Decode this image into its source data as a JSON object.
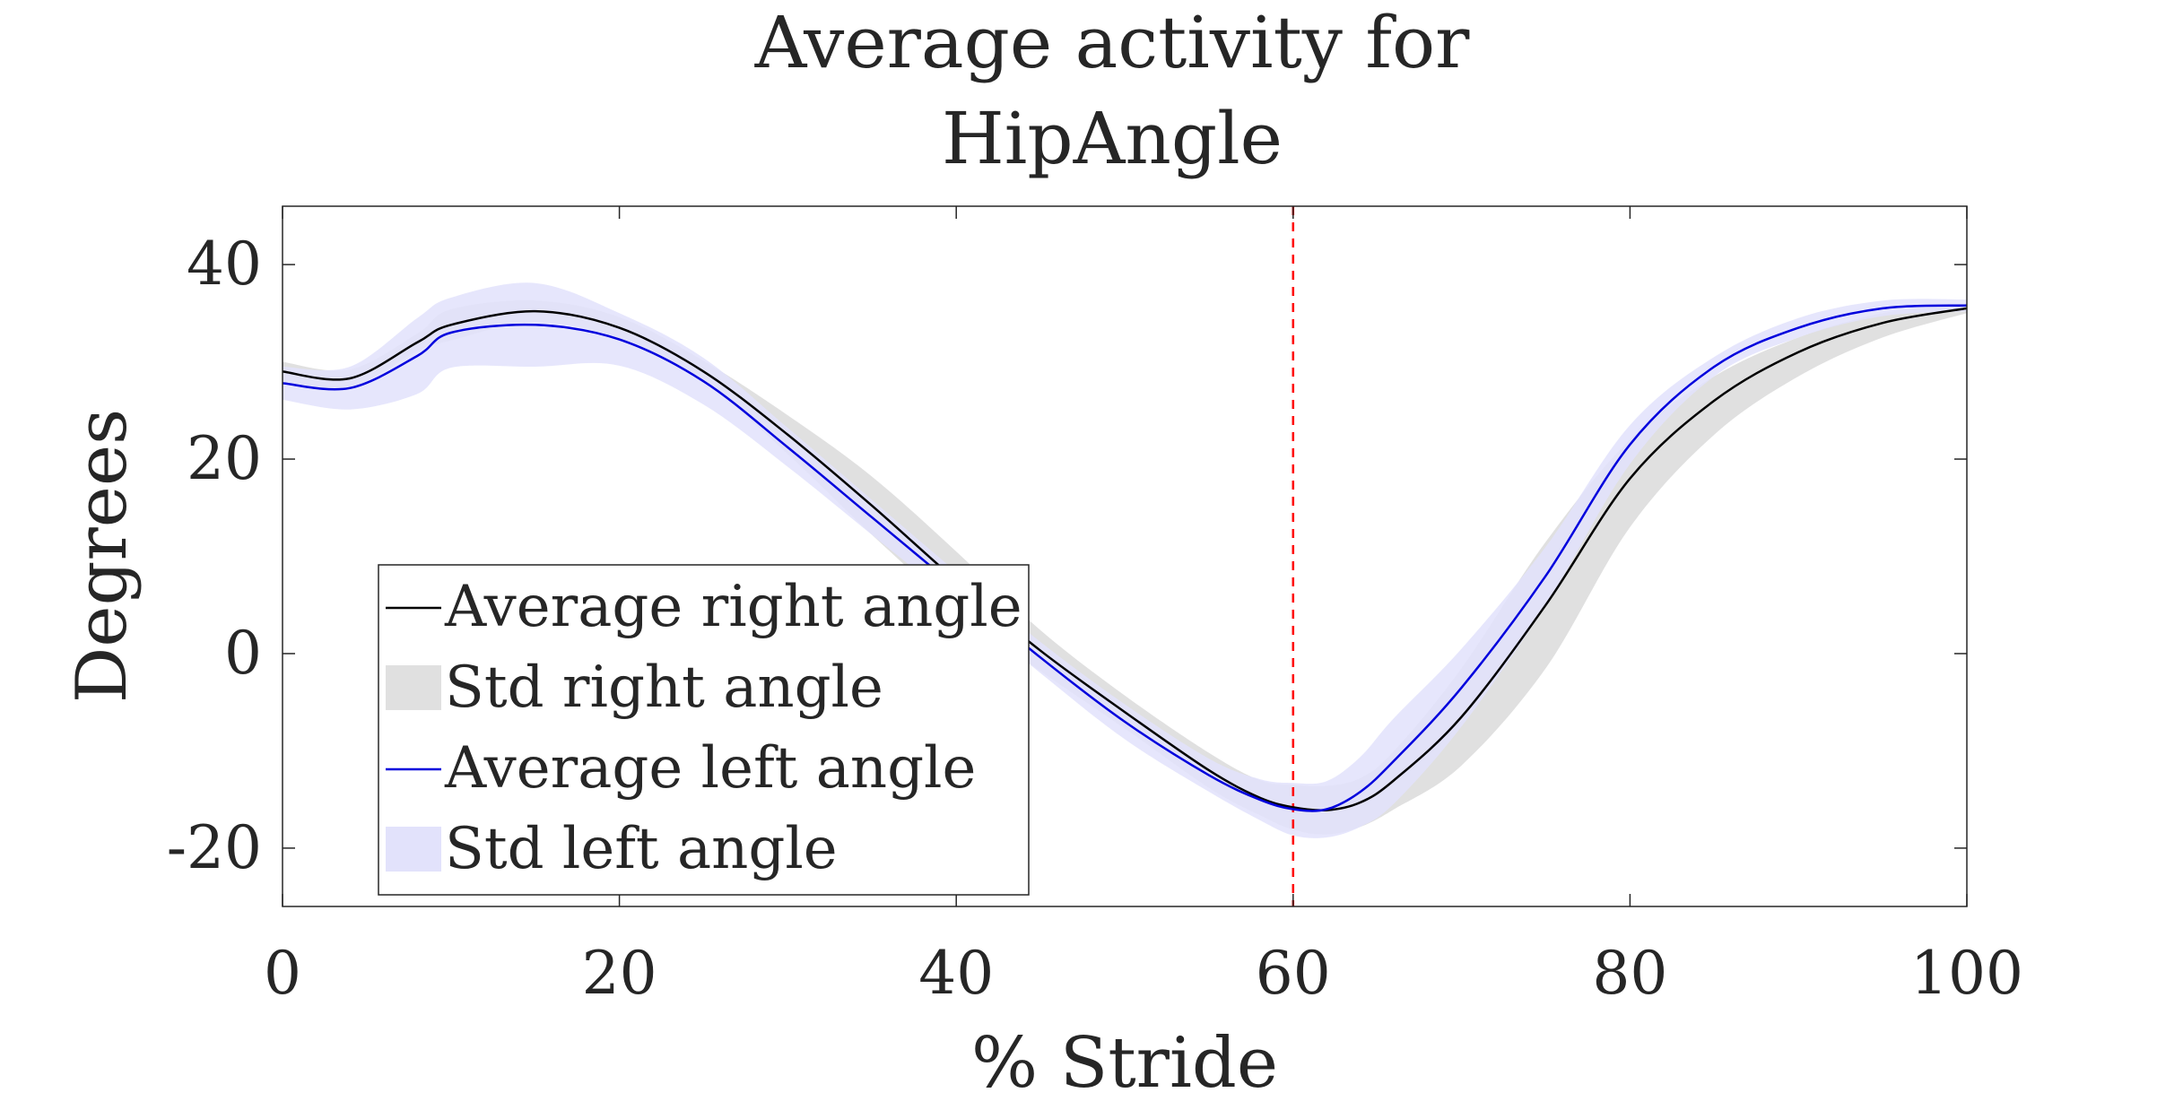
{
  "chart_data": {
    "type": "line",
    "title_lines": [
      "Average activity for",
      "HipAngle"
    ],
    "xlabel": "% Stride",
    "ylabel": "Degrees",
    "xlim": [
      0,
      100
    ],
    "ylim": [
      -26,
      46
    ],
    "xticks": [
      0,
      20,
      40,
      60,
      80,
      100
    ],
    "xtick_labels": [
      "0",
      "20",
      "40",
      "60",
      "80",
      "100"
    ],
    "yticks": [
      40,
      20,
      0,
      -20
    ],
    "ytick_labels": [
      "40",
      "20",
      "0",
      "-20"
    ],
    "grid": false,
    "vertical_marker": {
      "x": 60,
      "color": "#ff0000",
      "style": "dashed"
    },
    "legend": {
      "placement": "lower-left",
      "entries": [
        {
          "label": "Average right angle",
          "kind": "line",
          "color": "#000000"
        },
        {
          "label": "Std right angle",
          "kind": "band",
          "color": "#e0e0e0"
        },
        {
          "label": "Average left angle",
          "kind": "line",
          "color": "#0000dd"
        },
        {
          "label": "Std left angle",
          "kind": "band",
          "color": "#e2e2fb"
        }
      ]
    },
    "x": [
      0,
      4,
      8,
      10,
      15,
      20,
      25,
      30,
      35,
      40,
      45,
      50,
      55,
      58,
      60,
      62,
      64,
      66,
      70,
      75,
      80,
      85,
      90,
      95,
      100
    ],
    "series": [
      {
        "name": "Average right angle",
        "color": "#000000",
        "values": [
          29,
          28.3,
          32,
          33.8,
          35.2,
          33.5,
          29,
          22.5,
          15.2,
          7.5,
          0.3,
          -6,
          -12,
          -14.8,
          -15.8,
          -16.1,
          -15.3,
          -13,
          -6.5,
          5,
          18,
          26,
          31,
          34,
          35.5
        ],
        "std_band": {
          "name": "Std right angle",
          "color": "#e0e0e0",
          "upper": [
            30,
            29.2,
            32.9,
            35.4,
            36.3,
            34.6,
            30.1,
            24.5,
            18.2,
            10.5,
            2.4,
            -4.3,
            -10.2,
            -13,
            -13.5,
            -13.6,
            -12.8,
            -10,
            -1.5,
            11.5,
            22,
            28.5,
            32.5,
            35,
            36
          ],
          "lower": [
            28,
            27.4,
            31.1,
            32.2,
            34.1,
            32.4,
            27.9,
            20.5,
            12.2,
            4.5,
            -1.8,
            -7.7,
            -13.8,
            -16.6,
            -18.1,
            -18.6,
            -17.8,
            -16,
            -11.5,
            -1.5,
            13,
            22.5,
            28.5,
            32.5,
            35
          ]
        }
      },
      {
        "name": "Average left angle",
        "color": "#0000dd",
        "values": [
          27.8,
          27.3,
          30.6,
          33,
          33.8,
          32.3,
          28,
          21.2,
          14,
          6.8,
          -0.4,
          -7,
          -12.5,
          -15,
          -16,
          -16,
          -14.2,
          -11,
          -3.5,
          8,
          21.5,
          29.5,
          33.5,
          35.5,
          35.8
        ],
        "std_band": {
          "name": "Std left angle",
          "color": "#e2e2fb",
          "upper": [
            29.5,
            29.5,
            34.5,
            36.6,
            38.1,
            35,
            30.4,
            23.2,
            15.8,
            8.4,
            1.2,
            -5.2,
            -10.8,
            -12.9,
            -13.3,
            -13.1,
            -10.6,
            -6.6,
            0.5,
            11,
            23.5,
            30.5,
            34.5,
            36.3,
            36.4
          ],
          "lower": [
            26.1,
            25.1,
            26.7,
            29.4,
            29.5,
            29.6,
            25.6,
            19.2,
            12.2,
            5.2,
            -2,
            -8.8,
            -14.2,
            -17.1,
            -18.7,
            -18.9,
            -17.8,
            -15.4,
            -7.5,
            5,
            19.5,
            28.5,
            32.5,
            34.7,
            35.2
          ]
        }
      }
    ]
  }
}
